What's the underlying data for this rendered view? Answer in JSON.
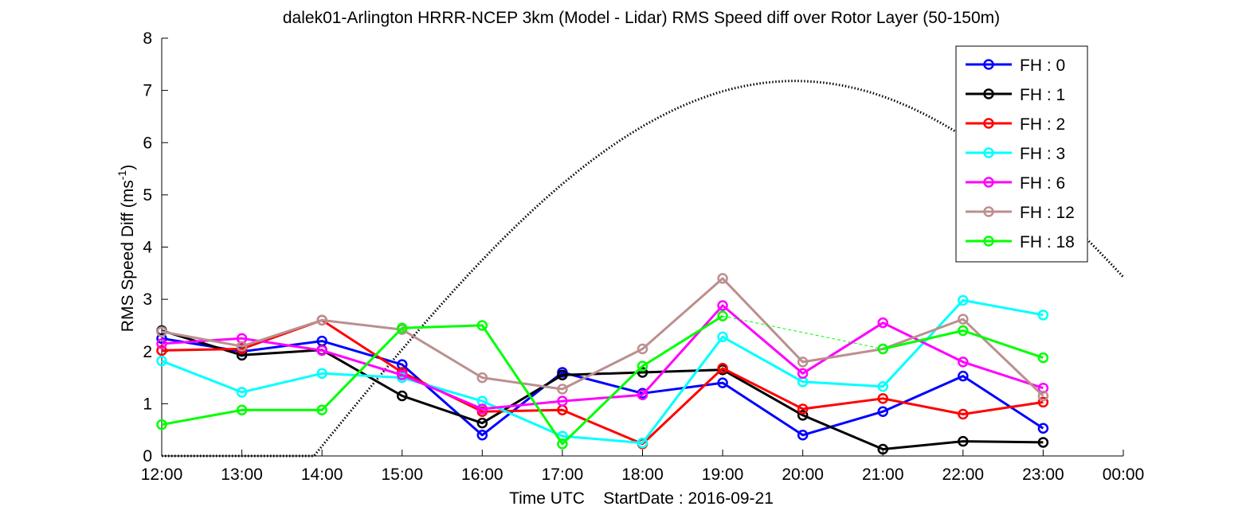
{
  "chart_data": {
    "type": "line",
    "title": "dalek01-Arlington HRRR-NCEP 3km (Model - Lidar) RMS Speed diff over Rotor Layer (50-150m)",
    "xlabel": "Time UTC    StartDate : 2016-09-21",
    "ylabel_main": "RMS Speed Diff (ms",
    "ylabel_sup": "-1",
    "ylabel_end": ")",
    "x_ticks": [
      "12:00",
      "13:00",
      "14:00",
      "15:00",
      "16:00",
      "17:00",
      "18:00",
      "19:00",
      "20:00",
      "21:00",
      "22:00",
      "23:00",
      "00:00"
    ],
    "x_range_hours": [
      12,
      24
    ],
    "y_ticks": [
      "0",
      "1",
      "2",
      "3",
      "4",
      "5",
      "6",
      "7",
      "8"
    ],
    "ylim": [
      0,
      8
    ],
    "grid": false,
    "legend_position": "top-right",
    "series": [
      {
        "name": "FH : 0",
        "color": "#0000ff",
        "points": [
          [
            12,
            2.25
          ],
          [
            13,
            2.0
          ],
          [
            14,
            2.2
          ],
          [
            15,
            1.75
          ],
          [
            16,
            0.4
          ],
          [
            17,
            1.6
          ],
          [
            18,
            1.2
          ],
          [
            19,
            1.4
          ],
          [
            20,
            0.4
          ],
          [
            21,
            0.85
          ],
          [
            22,
            1.53
          ],
          [
            23,
            0.53
          ]
        ]
      },
      {
        "name": "FH : 1",
        "color": "#000000",
        "points": [
          [
            12,
            2.4
          ],
          [
            13,
            1.93
          ],
          [
            14,
            2.03
          ],
          [
            15,
            1.15
          ],
          [
            16,
            0.63
          ],
          [
            17,
            1.55
          ],
          [
            18,
            1.6
          ],
          [
            19,
            1.65
          ],
          [
            20,
            0.78
          ],
          [
            21,
            0.13
          ],
          [
            22,
            0.28
          ],
          [
            23,
            0.26
          ]
        ]
      },
      {
        "name": "FH : 2",
        "color": "#ff0000",
        "points": [
          [
            12,
            2.02
          ],
          [
            13,
            2.05
          ],
          [
            14,
            2.6
          ],
          [
            15,
            1.6
          ],
          [
            16,
            0.85
          ],
          [
            17,
            0.88
          ],
          [
            18,
            0.23
          ],
          [
            19,
            1.68
          ],
          [
            20,
            0.9
          ],
          [
            21,
            1.1
          ],
          [
            22,
            0.8
          ],
          [
            23,
            1.03
          ]
        ]
      },
      {
        "name": "FH : 3",
        "color": "#00ffff",
        "points": [
          [
            12,
            1.82
          ],
          [
            13,
            1.22
          ],
          [
            14,
            1.58
          ],
          [
            15,
            1.5
          ],
          [
            16,
            1.05
          ],
          [
            17,
            0.38
          ],
          [
            18,
            0.25
          ],
          [
            19,
            2.28
          ],
          [
            20,
            1.42
          ],
          [
            21,
            1.33
          ],
          [
            22,
            2.98
          ],
          [
            23,
            2.7
          ]
        ]
      },
      {
        "name": "FH : 6",
        "color": "#ff00ff",
        "points": [
          [
            12,
            2.15
          ],
          [
            13,
            2.25
          ],
          [
            14,
            2.02
          ],
          [
            15,
            1.55
          ],
          [
            16,
            0.9
          ],
          [
            17,
            1.05
          ],
          [
            18,
            1.17
          ],
          [
            19,
            2.88
          ],
          [
            20,
            1.58
          ],
          [
            21,
            2.55
          ],
          [
            22,
            1.8
          ],
          [
            23,
            1.3
          ]
        ]
      },
      {
        "name": "FH : 12",
        "color": "#bc8f8f",
        "points": [
          [
            12,
            2.38
          ],
          [
            13,
            2.1
          ],
          [
            14,
            2.6
          ],
          [
            15,
            2.42
          ],
          [
            16,
            1.5
          ],
          [
            17,
            1.28
          ],
          [
            18,
            2.05
          ],
          [
            19,
            3.4
          ],
          [
            20,
            1.8
          ],
          [
            21,
            2.05
          ],
          [
            22,
            2.62
          ],
          [
            23,
            1.15
          ]
        ]
      },
      {
        "name": "FH : 18",
        "color": "#00ff00",
        "points": [
          [
            12,
            0.6
          ],
          [
            13,
            0.88
          ],
          [
            14,
            0.88
          ],
          [
            15,
            2.45
          ],
          [
            16,
            2.5
          ],
          [
            17,
            0.23
          ],
          [
            18,
            1.72
          ],
          [
            19,
            2.68
          ],
          [
            20,
            null
          ],
          [
            21,
            2.05
          ],
          [
            22,
            2.4
          ],
          [
            23,
            1.88
          ]
        ],
        "gap_bridge": [
          [
            19,
            2.68
          ],
          [
            21,
            2.05
          ]
        ]
      }
    ],
    "background_curve": {
      "style": "dotted",
      "color": "#000000",
      "x_start": 12,
      "x_zero_end": 13.9,
      "peak_x": 19.9,
      "peak_y": 7.18,
      "x_end": 24,
      "y_end": 3.45
    }
  }
}
